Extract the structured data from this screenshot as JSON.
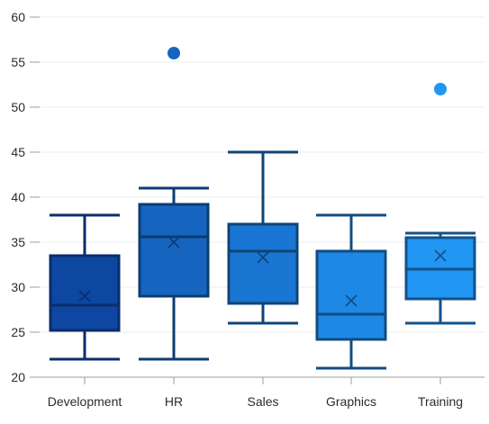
{
  "chart_data": {
    "type": "box",
    "title": "",
    "xlabel": "",
    "ylabel": "",
    "ylim": [
      20,
      60
    ],
    "y_ticks": [
      20,
      25,
      30,
      35,
      40,
      45,
      50,
      55,
      60
    ],
    "grid": "horizontal",
    "legend": "none",
    "categories": [
      "Development",
      "HR",
      "Sales",
      "Graphics",
      "Training"
    ],
    "boxes": [
      {
        "category": "Development",
        "min": 22,
        "q1": 25.2,
        "median": 28,
        "q3": 33.5,
        "max": 38,
        "mean": 29,
        "outliers": [],
        "fill": "#0d47a1",
        "stroke": "#0a2e6b"
      },
      {
        "category": "HR",
        "min": 22,
        "q1": 29,
        "median": 35.6,
        "q3": 39.2,
        "max": 41,
        "mean": 35,
        "outliers": [
          56
        ],
        "fill": "#1565c0",
        "stroke": "#0d3c70"
      },
      {
        "category": "Sales",
        "min": 26,
        "q1": 28.2,
        "median": 34,
        "q3": 37,
        "max": 45,
        "mean": 33.3,
        "outliers": [],
        "fill": "#1976d2",
        "stroke": "#0f4478"
      },
      {
        "category": "Graphics",
        "min": 21,
        "q1": 24.2,
        "median": 27,
        "q3": 34,
        "max": 38,
        "mean": 28.5,
        "outliers": [],
        "fill": "#1e88e5",
        "stroke": "#124b82"
      },
      {
        "category": "Training",
        "min": 26,
        "q1": 28.7,
        "median": 32,
        "q3": 35.5,
        "max": 36,
        "mean": 33.5,
        "outliers": [
          52
        ],
        "fill": "#2196f3",
        "stroke": "#13528a"
      }
    ]
  }
}
